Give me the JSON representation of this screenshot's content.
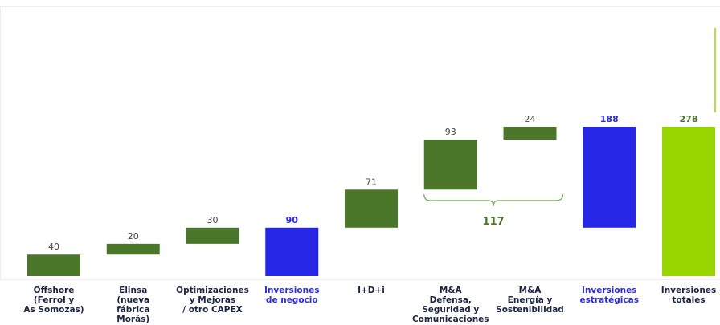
{
  "chart_data": {
    "type": "waterfall",
    "categories": [
      "Offshore\n(Ferrol y\nAs Somozas)",
      "Elinsa\n(nueva\nfábrica\nMorás)",
      "Optimizaciones\ny Mejoras\n/ otro CAPEX",
      "Inversiones\nde negocio",
      "I+D+i",
      "M&A\nDefensa,\nSeguridad y\nComunicaciones",
      "M&A\nEnergía y\nSostenibilidad",
      "Inversiones\nestratégicas",
      "Inversiones\ntotales"
    ],
    "values": [
      40,
      20,
      30,
      90,
      71,
      93,
      24,
      188,
      278
    ],
    "kinds": [
      "delta",
      "delta",
      "delta",
      "subtotal",
      "delta",
      "delta",
      "delta",
      "subtotal",
      "total"
    ],
    "colors": [
      "#4a7729",
      "#4a7729",
      "#4a7729",
      "#2626e6",
      "#4a7729",
      "#4a7729",
      "#4a7729",
      "#2626e6",
      "#99d600"
    ],
    "bracket": {
      "value": 117,
      "span": [
        5,
        6
      ]
    }
  }
}
